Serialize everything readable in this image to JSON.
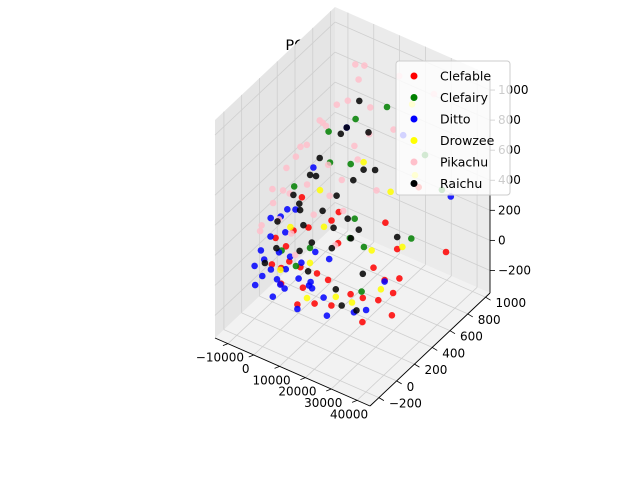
{
  "chart_data": {
    "type": "scatter",
    "title": "PCA for LR3",
    "x_ticks": [
      "−10000",
      "0",
      "10000",
      "20000",
      "30000",
      "40000"
    ],
    "y_ticks": [
      "−200",
      "0",
      "200",
      "400",
      "600",
      "800",
      "1000"
    ],
    "z_ticks": [
      "−200",
      "0",
      "200",
      "400",
      "600",
      "800",
      "1000"
    ],
    "xlim": [
      -15000,
      45000
    ],
    "ylim": [
      -300,
      1050
    ],
    "zlim": [
      -350,
      1100
    ],
    "grid": true,
    "legend_position": "top-right",
    "series": [
      {
        "name": "Clefable",
        "color": "#ff0000",
        "points": [
          [
            33000,
            380,
            30
          ],
          [
            38000,
            150,
            -50
          ],
          [
            40000,
            700,
            80
          ],
          [
            28000,
            500,
            120
          ],
          [
            25000,
            200,
            -60
          ],
          [
            30000,
            300,
            40
          ],
          [
            22000,
            150,
            -30
          ],
          [
            20000,
            600,
            180
          ],
          [
            -5000,
            50,
            20
          ],
          [
            0,
            100,
            50
          ],
          [
            2000,
            -50,
            0
          ],
          [
            5000,
            80,
            60
          ],
          [
            -3000,
            150,
            100
          ],
          [
            8000,
            20,
            -20
          ],
          [
            12000,
            300,
            150
          ],
          [
            15000,
            100,
            40
          ],
          [
            18000,
            50,
            -80
          ],
          [
            30000,
            50,
            -100
          ],
          [
            35000,
            250,
            20
          ],
          [
            10000,
            -100,
            -50
          ],
          [
            4000,
            200,
            250
          ],
          [
            -2000,
            300,
            350
          ],
          [
            6000,
            400,
            200
          ],
          [
            26000,
            800,
            350
          ],
          [
            14000,
            250,
            400
          ],
          [
            1000,
            -20,
            80
          ],
          [
            -6000,
            120,
            150
          ],
          [
            3000,
            60,
            300
          ],
          [
            9000,
            150,
            10
          ],
          [
            24000,
            350,
            50
          ],
          [
            31000,
            200,
            -30
          ],
          [
            16000,
            -80,
            -10
          ]
        ]
      },
      {
        "name": "Clefairy",
        "color": "#008000",
        "points": [
          [
            -2000,
            600,
            620
          ],
          [
            5000,
            700,
            700
          ],
          [
            10000,
            500,
            550
          ],
          [
            25000,
            900,
            500
          ],
          [
            35000,
            800,
            400
          ],
          [
            20000,
            200,
            300
          ],
          [
            -5000,
            300,
            400
          ],
          [
            8000,
            100,
            200
          ],
          [
            15000,
            400,
            280
          ],
          [
            28000,
            100,
            60
          ],
          [
            2000,
            500,
            500
          ],
          [
            12000,
            850,
            750
          ],
          [
            30000,
            600,
            150
          ],
          [
            -3000,
            100,
            100
          ],
          [
            22000,
            300,
            200
          ],
          [
            6000,
            0,
            120
          ]
        ]
      },
      {
        "name": "Ditto",
        "color": "#0000ff",
        "points": [
          [
            -10000,
            0,
            0
          ],
          [
            -8000,
            50,
            30
          ],
          [
            -6000,
            -30,
            -20
          ],
          [
            -4000,
            100,
            80
          ],
          [
            -2000,
            20,
            -40
          ],
          [
            0,
            60,
            20
          ],
          [
            2000,
            -60,
            0
          ],
          [
            4000,
            120,
            60
          ],
          [
            -9000,
            150,
            120
          ],
          [
            -7000,
            -80,
            -60
          ],
          [
            -5000,
            200,
            150
          ],
          [
            -3000,
            -20,
            40
          ],
          [
            1000,
            80,
            100
          ],
          [
            3000,
            -40,
            -30
          ],
          [
            6000,
            30,
            20
          ],
          [
            8000,
            160,
            140
          ],
          [
            10000,
            -100,
            -80
          ],
          [
            12000,
            200,
            100
          ],
          [
            15000,
            50,
            -50
          ],
          [
            25000,
            100,
            -100
          ],
          [
            28000,
            150,
            -90
          ],
          [
            30000,
            300,
            30
          ],
          [
            18000,
            0,
            -120
          ],
          [
            -1000,
            400,
            500
          ],
          [
            5000,
            600,
            700
          ],
          [
            20000,
            800,
            650
          ],
          [
            -11000,
            100,
            40
          ],
          [
            -8500,
            250,
            200
          ],
          [
            -6500,
            80,
            300
          ],
          [
            -4500,
            300,
            250
          ],
          [
            -2500,
            150,
            350
          ],
          [
            500,
            -100,
            -70
          ],
          [
            35000,
            900,
            300
          ],
          [
            14000,
            -50,
            60
          ],
          [
            9000,
            60,
            -20
          ],
          [
            11000,
            20,
            40
          ]
        ]
      },
      {
        "name": "Drowzee",
        "color": "#ffff00",
        "points": [
          [
            20000,
            900,
            800
          ],
          [
            28000,
            700,
            500
          ],
          [
            15000,
            500,
            600
          ],
          [
            25000,
            300,
            200
          ],
          [
            32000,
            200,
            50
          ],
          [
            18000,
            100,
            -50
          ],
          [
            10000,
            200,
            300
          ],
          [
            22000,
            600,
            400
          ],
          [
            5000,
            300,
            450
          ],
          [
            -3000,
            200,
            200
          ],
          [
            30000,
            500,
            150
          ],
          [
            12000,
            -50,
            -20
          ],
          [
            8000,
            100,
            100
          ],
          [
            26000,
            50,
            0
          ],
          [
            0,
            0,
            50
          ]
        ]
      },
      {
        "name": "Pikachu",
        "color": "#ffc0cb",
        "points": [
          [
            5000,
            800,
            1000
          ],
          [
            15000,
            900,
            950
          ],
          [
            25000,
            1000,
            850
          ],
          [
            -2000,
            500,
            750
          ],
          [
            8000,
            600,
            600
          ],
          [
            -6000,
            400,
            600
          ],
          [
            -8000,
            300,
            500
          ],
          [
            -10000,
            200,
            400
          ],
          [
            2000,
            700,
            800
          ],
          [
            10000,
            400,
            500
          ],
          [
            -4000,
            100,
            300
          ],
          [
            0,
            300,
            450
          ],
          [
            -7000,
            500,
            550
          ],
          [
            12000,
            650,
            680
          ],
          [
            -9000,
            50,
            250
          ],
          [
            -5000,
            250,
            380
          ],
          [
            -1000,
            150,
            200
          ],
          [
            3000,
            450,
            520
          ],
          [
            6000,
            200,
            350
          ],
          [
            -3000,
            600,
            650
          ],
          [
            18000,
            750,
            700
          ],
          [
            -11000,
            350,
            300
          ],
          [
            -8000,
            150,
            350
          ],
          [
            4000,
            50,
            150
          ],
          [
            7000,
            350,
            400
          ],
          [
            20000,
            500,
            450
          ],
          [
            -6000,
            650,
            620
          ],
          [
            1000,
            850,
            850
          ],
          [
            -2000,
            900,
            900
          ],
          [
            9000,
            750,
            780
          ],
          [
            14000,
            300,
            380
          ],
          [
            -12000,
            120,
            150
          ],
          [
            -9500,
            450,
            480
          ],
          [
            -4000,
            750,
            700
          ],
          [
            11000,
            550,
            560
          ],
          [
            16000,
            150,
            250
          ]
        ]
      },
      {
        "name": "Raichu",
        "color": "#000000",
        "points": [
          [
            5000,
            600,
            700
          ],
          [
            10000,
            700,
            650
          ],
          [
            15000,
            500,
            550
          ],
          [
            20000,
            300,
            300
          ],
          [
            25000,
            200,
            100
          ],
          [
            -5000,
            100,
            100
          ],
          [
            -3000,
            300,
            300
          ],
          [
            0,
            400,
            450
          ],
          [
            2000,
            200,
            250
          ],
          [
            4000,
            100,
            150
          ],
          [
            6000,
            300,
            320
          ],
          [
            8000,
            400,
            380
          ],
          [
            12000,
            250,
            280
          ],
          [
            14000,
            350,
            300
          ],
          [
            -2000,
            500,
            500
          ],
          [
            -8000,
            200,
            200
          ],
          [
            -6000,
            0,
            50
          ],
          [
            18000,
            100,
            0
          ],
          [
            22000,
            50,
            -50
          ],
          [
            26000,
            100,
            -80
          ],
          [
            9000,
            50,
            80
          ],
          [
            16000,
            600,
            500
          ],
          [
            28000,
            500,
            200
          ],
          [
            -4000,
            450,
            400
          ],
          [
            1000,
            650,
            600
          ],
          [
            3000,
            800,
            750
          ],
          [
            7000,
            150,
            200
          ],
          [
            11000,
            500,
            450
          ],
          [
            13000,
            200,
            180
          ],
          [
            17000,
            300,
            220
          ],
          [
            -1000,
            250,
            300
          ],
          [
            -7000,
            350,
            300
          ]
        ]
      }
    ]
  }
}
